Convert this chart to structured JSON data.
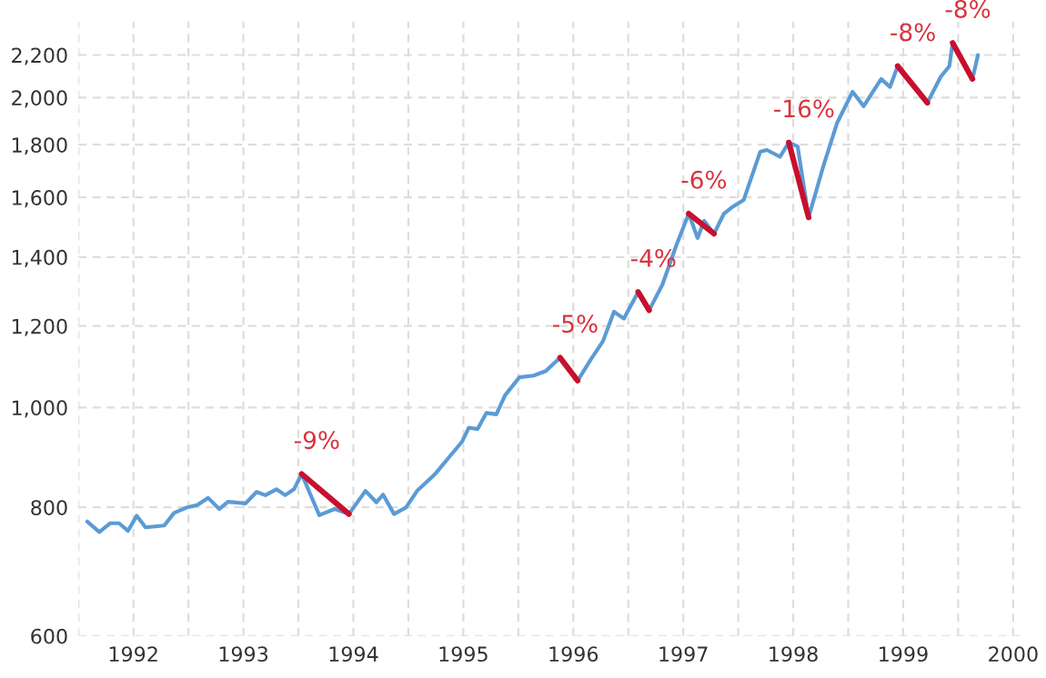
{
  "chart_data": {
    "type": "line",
    "log": "y",
    "grid": true,
    "marker": "none",
    "line_style": "solid",
    "xlim": [
      1991.5,
      2000.08
    ],
    "ylim": [
      600,
      2370
    ],
    "xticks": [
      {
        "value": 1991.5,
        "label": null
      },
      1992,
      {
        "value": 1992.5,
        "label": null
      },
      1993,
      {
        "value": 1993.5,
        "label": null
      },
      1994,
      {
        "value": 1994.5,
        "label": null
      },
      1995,
      {
        "value": 1995.5,
        "label": null
      },
      1996,
      {
        "value": 1996.5,
        "label": null
      },
      1997,
      {
        "value": 1997.5,
        "label": null
      },
      1998,
      {
        "value": 1998.5,
        "label": null
      },
      1999,
      {
        "value": 1999.5,
        "label": null
      },
      2000
    ],
    "yticks": [
      600,
      800,
      {
        "value": 1000,
        "label": "1,000"
      },
      {
        "value": 1200,
        "label": "1,200"
      },
      {
        "value": 1400,
        "label": "1,400"
      },
      {
        "value": 1600,
        "label": "1,600"
      },
      {
        "value": 1800,
        "label": "1,800"
      },
      {
        "value": 2000,
        "label": "2,000"
      },
      {
        "value": 2200,
        "label": "2,200"
      }
    ],
    "series": [
      {
        "color": "#5b9bd5",
        "x": [
          1991.58,
          1991.69,
          1991.79,
          1991.87,
          1991.95,
          1992.03,
          1992.11,
          1992.28,
          1992.37,
          1992.49,
          1992.58,
          1992.68,
          1992.78,
          1992.86,
          1993.02,
          1993.12,
          1993.2,
          1993.3,
          1993.38,
          1993.46,
          1993.53,
          1993.69,
          1993.83,
          1993.96,
          1994.11,
          1994.21,
          1994.27,
          1994.37,
          1994.48,
          1994.58,
          1994.74,
          1994.89,
          1994.99,
          1995.05,
          1995.13,
          1995.21,
          1995.3,
          1995.38,
          1995.51,
          1995.64,
          1995.75,
          1995.88,
          1996.04,
          1996.16,
          1996.27,
          1996.37,
          1996.46,
          1996.59,
          1996.69,
          1996.81,
          1996.94,
          1997.05,
          1997.13,
          1997.19,
          1997.28,
          1997.37,
          1997.45,
          1997.55,
          1997.7,
          1997.76,
          1997.88,
          1997.96,
          1998.04,
          1998.14,
          1998.27,
          1998.4,
          1998.54,
          1998.64,
          1998.8,
          1998.88,
          1998.95,
          1999.22,
          1999.34,
          1999.42,
          1999.45,
          1999.63,
          1999.68
        ],
        "values": [
          775,
          757,
          772,
          772,
          759,
          785,
          765,
          768,
          790,
          800,
          804,
          817,
          797,
          810,
          807,
          828,
          822,
          833,
          822,
          833,
          862,
          786,
          797,
          788,
          830,
          809,
          823,
          788,
          800,
          830,
          861,
          900,
          927,
          956,
          953,
          988,
          985,
          1028,
          1070,
          1074,
          1085,
          1118,
          1062,
          1114,
          1160,
          1239,
          1220,
          1295,
          1243,
          1316,
          1440,
          1543,
          1461,
          1518,
          1475,
          1543,
          1567,
          1591,
          1772,
          1779,
          1752,
          1809,
          1793,
          1530,
          1710,
          1891,
          2026,
          1962,
          2085,
          2048,
          2146,
          1977,
          2094,
          2146,
          2260,
          2085,
          2200
        ]
      },
      {
        "color": "#c8102e",
        "x": [
          1993.53,
          1993.96
        ],
        "values": [
          862,
          788
        ]
      },
      {
        "color": "#c8102e",
        "x": [
          1995.88,
          1996.04
        ],
        "values": [
          1118,
          1062
        ]
      },
      {
        "color": "#c8102e",
        "x": [
          1996.59,
          1996.69
        ],
        "values": [
          1295,
          1243
        ]
      },
      {
        "color": "#c8102e",
        "x": [
          1997.05,
          1997.28
        ],
        "values": [
          1543,
          1475
        ]
      },
      {
        "color": "#c8102e",
        "x": [
          1997.96,
          1998.14
        ],
        "values": [
          1809,
          1530
        ]
      },
      {
        "color": "#c8102e",
        "x": [
          1998.95,
          1999.22
        ],
        "values": [
          2146,
          1977
        ]
      },
      {
        "color": "#c8102e",
        "x": [
          1999.45,
          1999.63
        ],
        "values": [
          2260,
          2085
        ]
      }
    ],
    "annotations": [
      {
        "text": "-9%",
        "x": 1993.53,
        "y": 862
      },
      {
        "text": "-5%",
        "x": 1995.88,
        "y": 1118
      },
      {
        "text": "-4%",
        "x": 1996.59,
        "y": 1295
      },
      {
        "text": "-6%",
        "x": 1997.05,
        "y": 1543
      },
      {
        "text": "-16%",
        "x": 1997.96,
        "y": 1809
      },
      {
        "text": "-8%",
        "x": 1998.95,
        "y": 2146
      },
      {
        "text": "-8%",
        "x": 1999.45,
        "y": 2260
      }
    ]
  }
}
